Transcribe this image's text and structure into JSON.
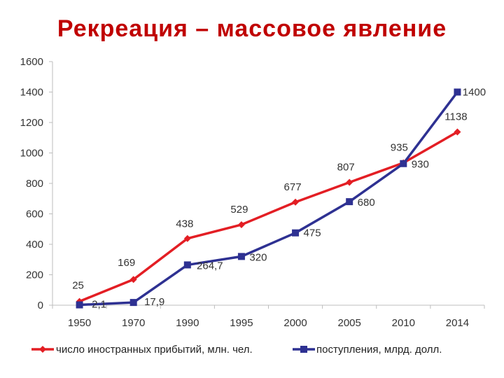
{
  "title": "Рекреация – массовое явление",
  "chart_data": {
    "type": "line",
    "title": "",
    "categories": [
      "1950",
      "1970",
      "1990",
      "1995",
      "2000",
      "2005",
      "2010",
      "2014"
    ],
    "ylim": [
      0,
      1600
    ],
    "yticks": [
      0,
      200,
      400,
      600,
      800,
      1000,
      1200,
      1400,
      1600
    ],
    "grid": false,
    "legend_position": "bottom",
    "series": [
      {
        "name": "число иностранных прибытий, млн. чел.",
        "color": "#e31e24",
        "marker": "diamond",
        "values": [
          25,
          169,
          438,
          529,
          677,
          807,
          935,
          1138
        ],
        "labels": [
          "25",
          "169",
          "438",
          "529",
          "677",
          "807",
          "935",
          "1138"
        ]
      },
      {
        "name": "поступления, млрд. долл.",
        "color": "#2e3192",
        "marker": "square",
        "values": [
          2.1,
          17.9,
          264.7,
          320,
          475,
          680,
          930,
          1400
        ],
        "labels": [
          "2,1",
          "17,9",
          "264,7",
          "320",
          "475",
          "680",
          "930",
          "1400"
        ]
      }
    ]
  }
}
